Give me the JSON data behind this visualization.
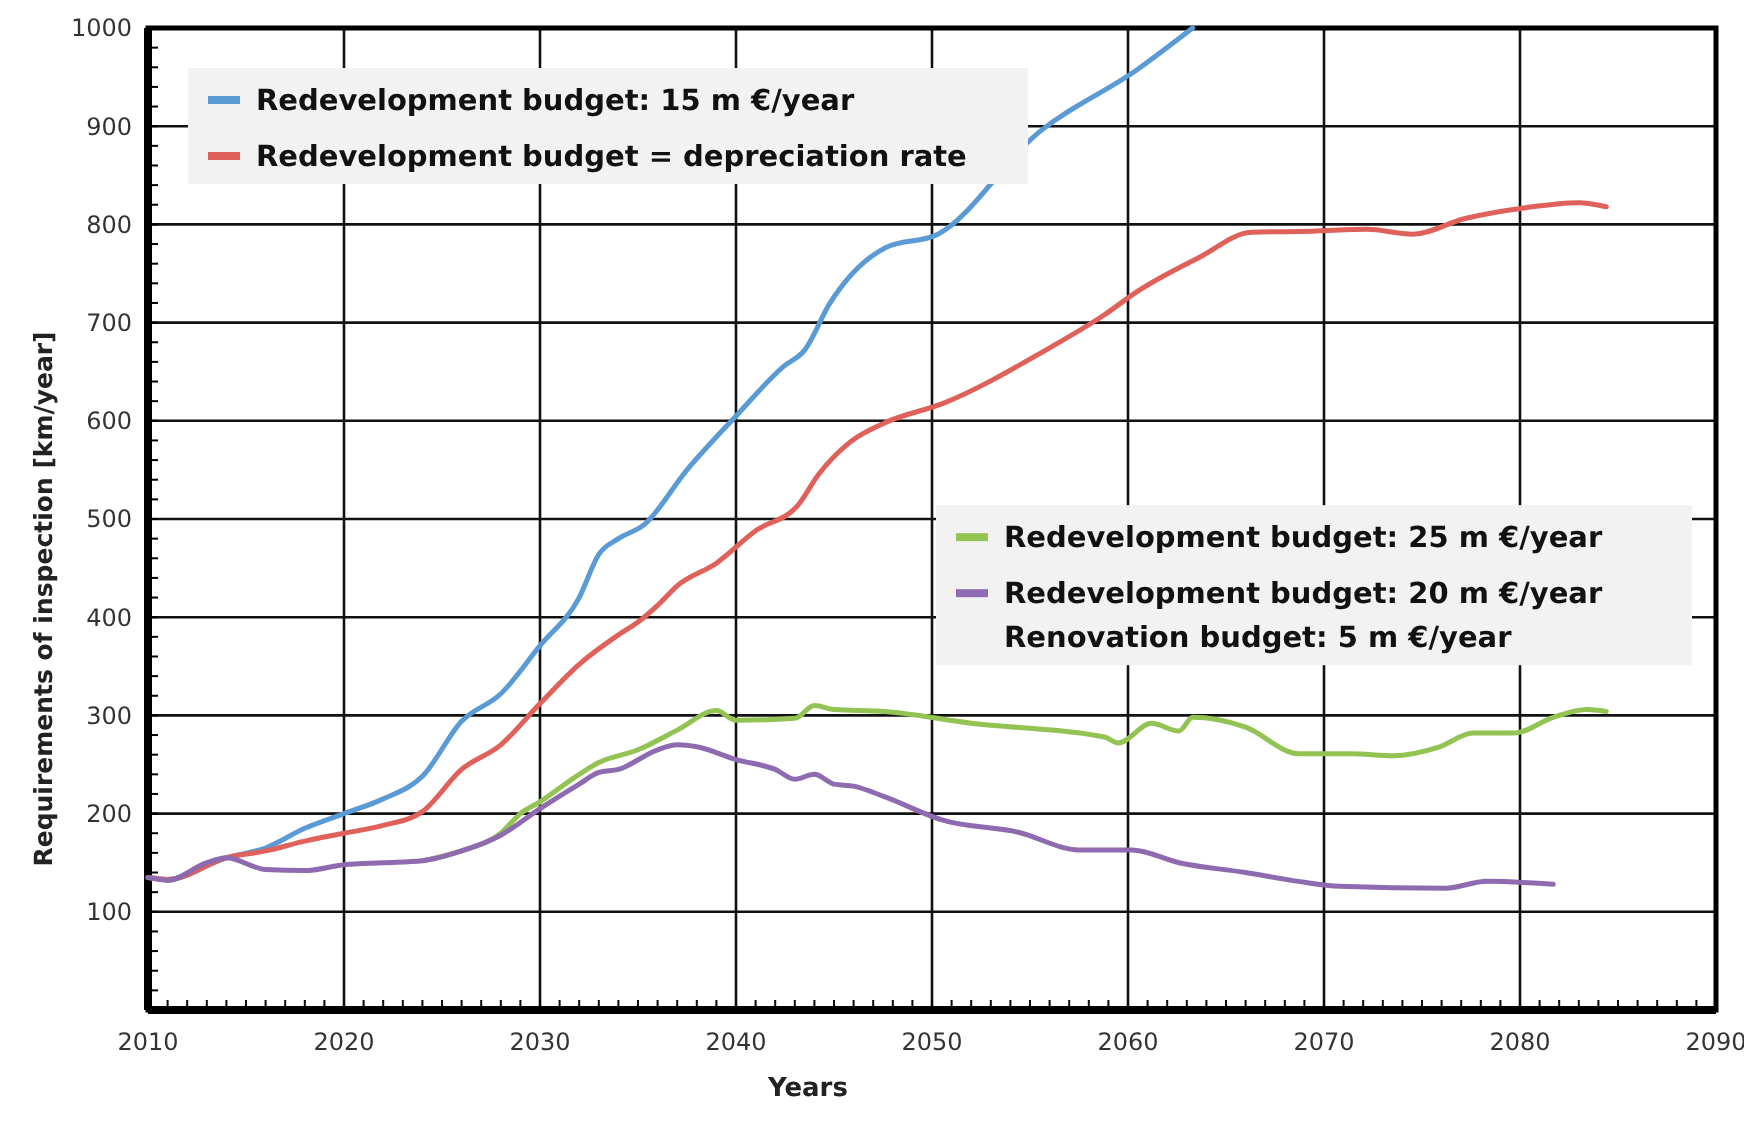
{
  "chart_data": {
    "type": "line",
    "xlabel": "Years",
    "ylabel": "Requirements of inspection  [km/year]",
    "xlim": [
      2010,
      2090
    ],
    "xticks": [
      2010,
      2020,
      2030,
      2040,
      2050,
      2060,
      2070,
      2080,
      2090
    ],
    "ylim": [
      0,
      1000
    ],
    "yticks": [
      100,
      200,
      300,
      400,
      500,
      600,
      700,
      800,
      900,
      1000
    ],
    "grid": true,
    "legend": "top left",
    "marker": "none",
    "line_style": "solid",
    "series": [
      {
        "name": "Redevelopment budget: 15 m €/year",
        "color": "#5b9bd5",
        "x": [
          2010,
          2011,
          2014,
          2016,
          2018,
          2020,
          2022,
          2024,
          2026,
          2028,
          2030,
          2032,
          2033,
          2034,
          2035.3,
          2037.5,
          2040.1,
          2042.4,
          2043.5,
          2044.8,
          2047.6,
          2050.3,
          2055.4,
          2060.5,
          2063.3
        ],
        "values": [
          135,
          133,
          155,
          165,
          185,
          200,
          215,
          238,
          294,
          322,
          371,
          420,
          464,
          480,
          494,
          550,
          607,
          655,
          672,
          720,
          776,
          790,
          893,
          958,
          1000
        ]
      },
      {
        "name": "Redevelopment budget = depreciation rate",
        "color": "#e0605a",
        "x": [
          2010,
          2011,
          2014,
          2016,
          2018,
          2020,
          2022,
          2024,
          2026,
          2028,
          2030,
          2032,
          2034,
          2035,
          2036,
          2037,
          2039,
          2041,
          2043.2,
          2044.2,
          2045.8,
          2047.6,
          2050.6,
          2055.8,
          2058.8,
          2060.5,
          2063.6,
          2066.3,
          2069.4,
          2072.2,
          2074.5,
          2077.2,
          2080.3,
          2083,
          2084.4
        ],
        "values": [
          135,
          133,
          155,
          162,
          172,
          180,
          188,
          202,
          245,
          270,
          312,
          352,
          382,
          395,
          412,
          432,
          455,
          488,
          515,
          545,
          578,
          598,
          618,
          672,
          708,
          732,
          766,
          792,
          793,
          795,
          790,
          806,
          817,
          822,
          818
        ]
      },
      {
        "name": "Redevelopment budget: 25 m €/year",
        "color": "#92c353",
        "x": [
          2024,
          2026,
          2028,
          2029,
          2030,
          2032,
          2033,
          2035,
          2037,
          2039,
          2040,
          2043,
          2044,
          2045,
          2047.6,
          2052,
          2058.8,
          2059.5,
          2061.2,
          2062.6,
          2063.3,
          2066,
          2068.7,
          2071.4,
          2073.5,
          2075.9,
          2077.6,
          2079.7,
          2081.7,
          2083.4,
          2084.4
        ],
        "values": [
          152,
          162,
          180,
          200,
          212,
          240,
          252,
          265,
          285,
          305,
          295,
          297,
          310,
          306,
          304,
          292,
          278,
          272,
          292,
          284,
          298,
          288,
          261,
          261,
          259,
          268,
          282,
          282,
          298,
          306,
          304
        ]
      },
      {
        "name": "Redevelopment budget: 20 m €/year\nRenovation budget: 5 m €/year",
        "color": "#8e6bb0",
        "x": [
          2010,
          2011,
          2013,
          2014,
          2016,
          2018,
          2020,
          2022,
          2024,
          2026,
          2028,
          2030,
          2032,
          2033,
          2034,
          2036,
          2037,
          2038,
          2040,
          2042,
          2043,
          2044,
          2045,
          2046,
          2047.6,
          2050.6,
          2054.4,
          2057.5,
          2060.2,
          2062.6,
          2066,
          2068.7,
          2070.8,
          2076.2,
          2078.3,
          2081.7
        ],
        "values": [
          135,
          132,
          150,
          155,
          143,
          142,
          148,
          150,
          152,
          162,
          178,
          205,
          230,
          242,
          245,
          265,
          270,
          268,
          255,
          245,
          235,
          240,
          230,
          228,
          217,
          193,
          181,
          163,
          163,
          150,
          140,
          131,
          126,
          124,
          131,
          128
        ]
      }
    ]
  }
}
